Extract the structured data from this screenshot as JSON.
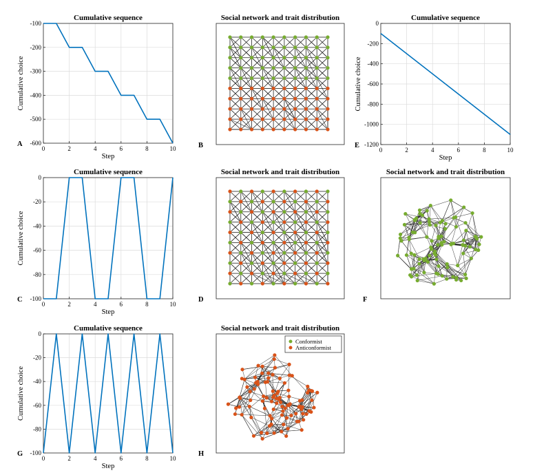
{
  "colors": {
    "line": "#0072BD",
    "conformist": "#77AC30",
    "anticonformist": "#D95319",
    "edge": "#222222",
    "grid": "#dcdcdc"
  },
  "chart_data": [
    {
      "id": "A",
      "panel_label": "A",
      "type": "line",
      "title": "Cumulative sequence",
      "xlabel": "Step",
      "ylabel": "Cumulative choice",
      "xlim": [
        0,
        10
      ],
      "ylim": [
        -600,
        -100
      ],
      "xticks": [
        0,
        2,
        4,
        6,
        8,
        10
      ],
      "yticks": [
        -600,
        -500,
        -400,
        -300,
        -200,
        -100
      ],
      "grid": true,
      "series": [
        {
          "name": "cumulative",
          "x": [
            0,
            1,
            2,
            3,
            4,
            5,
            6,
            7,
            8,
            9,
            10
          ],
          "y": [
            -100,
            -100,
            -200,
            -200,
            -300,
            -300,
            -400,
            -400,
            -500,
            -500,
            -600
          ]
        }
      ]
    },
    {
      "id": "B",
      "panel_label": "B",
      "type": "network",
      "title": "Social network and trait distribution",
      "layout": "grid",
      "rows": 10,
      "cols": 10,
      "traits_by_row": [
        "conformist",
        "conformist",
        "conformist",
        "conformist",
        "conformist",
        "anticonformist",
        "anticonformist",
        "anticonformist",
        "anticonformist",
        "anticonformist"
      ]
    },
    {
      "id": "E",
      "panel_label": "E",
      "type": "line",
      "title": "Cumulative sequence",
      "xlabel": "Step",
      "ylabel": "Cumulative choice",
      "xlim": [
        0,
        10
      ],
      "ylim": [
        -1200,
        0
      ],
      "xticks": [
        0,
        2,
        4,
        6,
        8,
        10
      ],
      "yticks": [
        -1200,
        -1000,
        -800,
        -600,
        -400,
        -200,
        0
      ],
      "grid": true,
      "series": [
        {
          "name": "cumulative",
          "x": [
            0,
            10
          ],
          "y": [
            -100,
            -1100
          ]
        }
      ]
    },
    {
      "id": "C",
      "panel_label": "C",
      "type": "line",
      "title": "Cumulative sequence",
      "xlabel": "Step",
      "ylabel": "Cumulative choice",
      "xlim": [
        0,
        10
      ],
      "ylim": [
        -100,
        0
      ],
      "xticks": [
        0,
        2,
        4,
        6,
        8,
        10
      ],
      "yticks": [
        -100,
        -80,
        -60,
        -40,
        -20,
        0
      ],
      "grid": true,
      "series": [
        {
          "name": "cumulative",
          "x": [
            0,
            1,
            2,
            3,
            4,
            5,
            6,
            7,
            8,
            9,
            10
          ],
          "y": [
            -100,
            -100,
            0,
            0,
            -100,
            -100,
            0,
            0,
            -100,
            -100,
            0
          ]
        }
      ]
    },
    {
      "id": "D",
      "panel_label": "D",
      "type": "network",
      "title": "Social network and trait distribution",
      "layout": "grid",
      "rows": 10,
      "cols": 10,
      "traits_by_node": "alternating"
    },
    {
      "id": "F",
      "panel_label": "F",
      "type": "network",
      "title": "Social network and trait distribution",
      "layout": "random",
      "nodes": 100,
      "trait": "conformist"
    },
    {
      "id": "G",
      "panel_label": "G",
      "type": "line",
      "title": "Cumulative sequence",
      "xlabel": "Step",
      "ylabel": "Cumulative choice",
      "xlim": [
        0,
        10
      ],
      "ylim": [
        -100,
        0
      ],
      "xticks": [
        0,
        2,
        4,
        6,
        8,
        10
      ],
      "yticks": [
        -100,
        -80,
        -60,
        -40,
        -20,
        0
      ],
      "grid": true,
      "series": [
        {
          "name": "cumulative",
          "x": [
            0,
            1,
            2,
            3,
            4,
            5,
            6,
            7,
            8,
            9,
            10
          ],
          "y": [
            -100,
            0,
            -100,
            0,
            -100,
            0,
            -100,
            0,
            -100,
            0,
            -100
          ]
        }
      ]
    },
    {
      "id": "H",
      "panel_label": "H",
      "type": "network",
      "title": "Social network and trait distribution",
      "layout": "random",
      "nodes": 100,
      "trait": "anticonformist",
      "legend": [
        {
          "label": "Conformist",
          "trait": "conformist"
        },
        {
          "label": "Anticonformist",
          "trait": "anticonformist"
        }
      ],
      "legend_position": "top-right"
    }
  ]
}
